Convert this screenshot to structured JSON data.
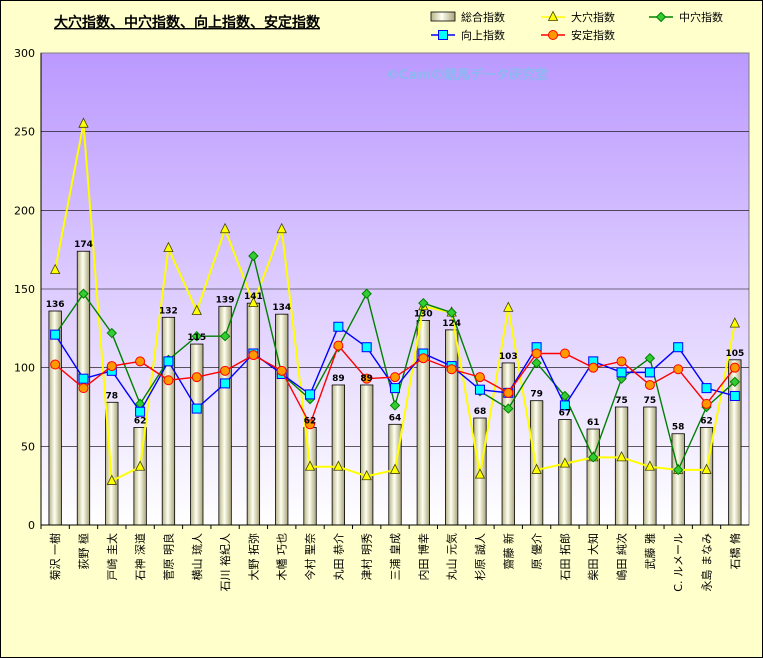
{
  "chart_data": {
    "type": "bar",
    "title": "大穴指数、中穴指数、向上指数、安定指数",
    "watermark": "©Caniの競馬データ研究室",
    "categories": [
      "菊沢 一樹",
      "荻野 極",
      "戸崎 圭太",
      "石神 深道",
      "菅原 明良",
      "横山 琉人",
      "石川 裕紀人",
      "大野 拓弥",
      "木幡 巧也",
      "今村 聖奈",
      "丸田 恭介",
      "津村 明秀",
      "三浦 皇成",
      "内田 博幸",
      "丸山 元気",
      "杉原 誠人",
      "齋藤 新",
      "原 優介",
      "石田 拓郎",
      "柴田 大知",
      "嶋田 純次",
      "武藤 雅",
      "C. ルメール",
      "永島 まなみ",
      "石橋 脩"
    ],
    "ylim": [
      0,
      300
    ],
    "yticks": [
      0,
      50,
      100,
      150,
      200,
      250,
      300
    ],
    "grid": true,
    "legend_position": "top-right",
    "series": [
      {
        "name": "総合指数",
        "kind": "bar",
        "color": "#e8e4b0",
        "values": [
          136,
          174,
          78,
          62,
          132,
          115,
          139,
          141,
          134,
          62,
          89,
          89,
          64,
          130,
          124,
          68,
          103,
          79,
          67,
          61,
          75,
          75,
          58,
          62,
          105
        ]
      },
      {
        "name": "大穴指数",
        "kind": "line",
        "color": "#ffff00",
        "marker": "triangle",
        "values": [
          162,
          255,
          28,
          37,
          176,
          136,
          188,
          141,
          188,
          37,
          37,
          31,
          35,
          139,
          135,
          32,
          138,
          35,
          39,
          43,
          43,
          37,
          35,
          35,
          128
        ]
      },
      {
        "name": "中穴指数",
        "kind": "line",
        "color": "#008000",
        "marker": "diamond",
        "values": [
          121,
          147,
          122,
          77,
          105,
          120,
          120,
          171,
          96,
          80,
          113,
          147,
          76,
          141,
          135,
          85,
          74,
          103,
          82,
          43,
          93,
          106,
          35,
          75,
          91
        ]
      },
      {
        "name": "向上指数",
        "kind": "line",
        "color": "#0000ff",
        "marker": "square",
        "values": [
          121,
          93,
          98,
          72,
          104,
          74,
          90,
          109,
          96,
          83,
          126,
          113,
          87,
          109,
          101,
          86,
          84,
          113,
          76,
          104,
          97,
          97,
          113,
          87,
          82
        ]
      },
      {
        "name": "安定指数",
        "kind": "line",
        "color": "#ff0000",
        "marker": "circle",
        "values": [
          102,
          87,
          101,
          104,
          92,
          94,
          98,
          108,
          98,
          64,
          114,
          93,
          94,
          106,
          99,
          94,
          84,
          109,
          109,
          100,
          104,
          89,
          99,
          77,
          100
        ]
      }
    ]
  }
}
